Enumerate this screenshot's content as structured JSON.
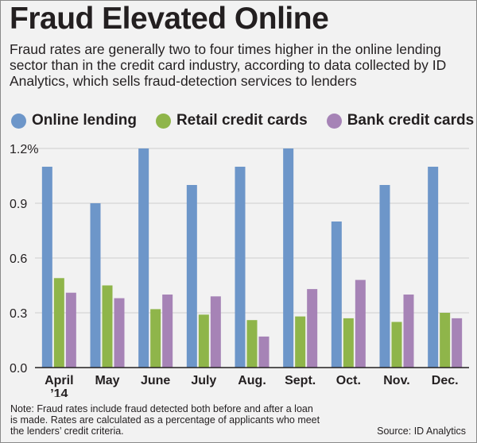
{
  "title": "Fraud Elevated Online",
  "subtitle": "Fraud rates are generally two to four times higher in the online lending sector than in the credit card industry, according to data collected by ID Analytics, which sells fraud-detection services to lenders",
  "note": "Note: Fraud rates include fraud detected both before and after a loan is made. Rates are calculated as a percentage of applicants who meet the lenders’ credit criteria.",
  "source": "Source: ID Analytics",
  "colors": {
    "online": "#6d96c9",
    "retail": "#8fb54a",
    "bank": "#a683b6",
    "text": "#231f20",
    "axis": "#231f20",
    "grid": "#cfcfcf"
  },
  "chart_data": {
    "type": "bar",
    "categories": [
      [
        "April",
        "’14"
      ],
      [
        "May"
      ],
      [
        "June"
      ],
      [
        "July"
      ],
      [
        "Aug."
      ],
      [
        "Sept."
      ],
      [
        "Oct."
      ],
      [
        "Nov."
      ],
      [
        "Dec."
      ]
    ],
    "series": [
      {
        "name": "Online lending",
        "color_key": "online",
        "values": [
          1.1,
          0.9,
          1.2,
          1.0,
          1.1,
          1.2,
          0.8,
          1.0,
          1.1
        ]
      },
      {
        "name": "Retail credit cards",
        "color_key": "retail",
        "values": [
          0.49,
          0.45,
          0.32,
          0.29,
          0.26,
          0.28,
          0.27,
          0.25,
          0.3
        ]
      },
      {
        "name": "Bank credit cards",
        "color_key": "bank",
        "values": [
          0.41,
          0.38,
          0.4,
          0.39,
          0.17,
          0.43,
          0.48,
          0.4,
          0.27
        ]
      }
    ],
    "y_ticks": [
      0,
      0.3,
      0.6,
      0.9,
      1.2
    ],
    "y_tick_labels": [
      "0.0",
      "0.3",
      "0.6",
      "0.9",
      "1.2%"
    ],
    "ylim": [
      0,
      1.2
    ],
    "grid": true,
    "legend_position": "top-left"
  }
}
